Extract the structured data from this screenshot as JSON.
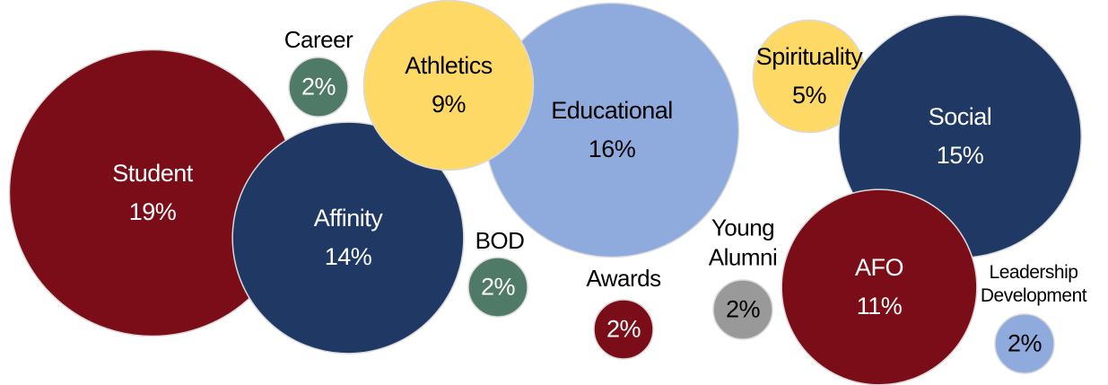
{
  "chart_data": {
    "type": "bubble",
    "categories": [
      "Student",
      "Affinity",
      "Career",
      "Educational",
      "Athletics",
      "BOD",
      "Awards",
      "Spirituality",
      "Social",
      "Young Alumni",
      "AFO",
      "Leadership Development"
    ],
    "values": [
      19,
      14,
      2,
      16,
      9,
      2,
      2,
      5,
      15,
      2,
      11,
      2
    ],
    "value_labels": [
      "19%",
      "14%",
      "2%",
      "16%",
      "9%",
      "2%",
      "2%",
      "5%",
      "15%",
      "2%",
      "11%",
      "2%"
    ],
    "colors": [
      "#7a0d17",
      "#1f3864",
      "#4f7a68",
      "#8faadc",
      "#ffd966",
      "#4f7a68",
      "#7a0d17",
      "#ffd966",
      "#1f3864",
      "#999999",
      "#7a0d17",
      "#8faadc"
    ]
  }
}
